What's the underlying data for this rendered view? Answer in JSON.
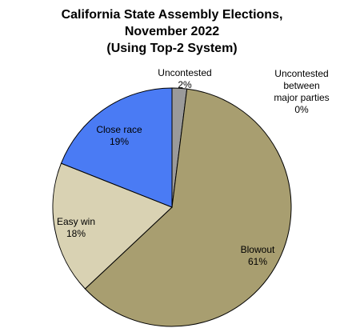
{
  "chart_data": {
    "type": "pie",
    "title_lines": [
      "California State Assembly Elections,",
      "November 2022",
      "(Using Top-2 System)"
    ],
    "slices": [
      {
        "label_lines": [
          "Uncontested",
          "2%"
        ],
        "value": 2,
        "color": "#9a9a9a"
      },
      {
        "label_lines": [
          "Uncontested",
          "between",
          "major parties",
          "0%"
        ],
        "value": 0,
        "color": "#ffffff"
      },
      {
        "label_lines": [
          "Blowout",
          "61%"
        ],
        "value": 61,
        "color": "#a89e70"
      },
      {
        "label_lines": [
          "Easy win",
          "18%"
        ],
        "value": 18,
        "color": "#d9d2b3"
      },
      {
        "label_lines": [
          "Close race",
          "19%"
        ],
        "value": 19,
        "color": "#4a7bf4"
      }
    ],
    "start_angle": "12 o'clock",
    "direction": "clockwise",
    "legend": "none"
  }
}
